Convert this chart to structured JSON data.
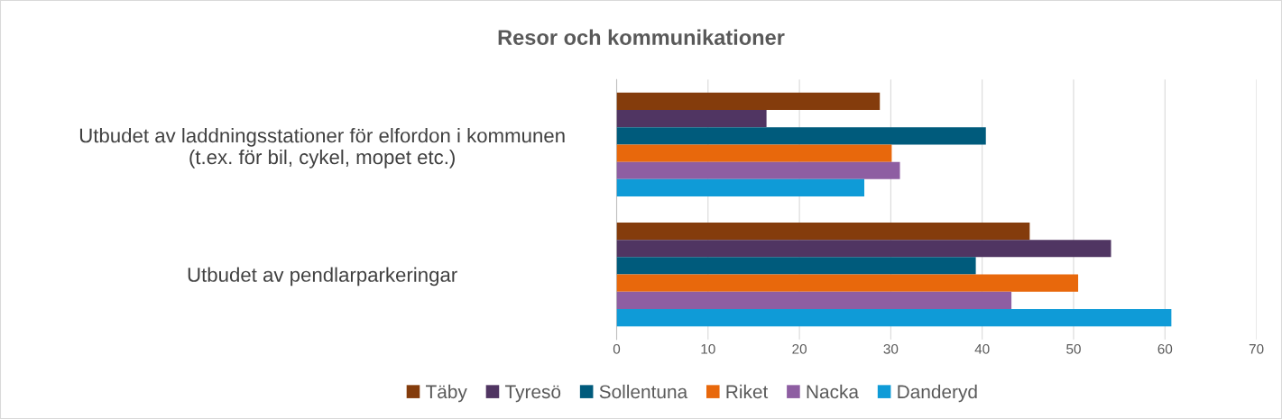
{
  "chart_data": {
    "type": "bar",
    "orientation": "horizontal",
    "title": "Resor och kommunikationer",
    "categories": [
      "Utbudet av laddningsstationer för elfordon i kommunen\n(t.ex. för bil, cykel, mopet etc.)",
      "Utbudet av pendlarparkeringar"
    ],
    "series": [
      {
        "name": "Täby",
        "color": "#843c0c",
        "values": [
          28.8,
          45.2
        ]
      },
      {
        "name": "Tyresö",
        "color": "#503562",
        "values": [
          16.4,
          54.1
        ]
      },
      {
        "name": "Sollentuna",
        "color": "#005b7c",
        "values": [
          40.4,
          39.3
        ]
      },
      {
        "name": "Riket",
        "color": "#e8680c",
        "values": [
          30.1,
          50.5
        ]
      },
      {
        "name": "Nacka",
        "color": "#8e5ea2",
        "values": [
          31.0,
          43.2
        ]
      },
      {
        "name": "Danderyd",
        "color": "#0f9bd7",
        "values": [
          27.1,
          60.7
        ]
      }
    ],
    "xlim": [
      0,
      70
    ],
    "xticks": [
      0,
      10,
      20,
      30,
      40,
      50,
      60,
      70
    ],
    "grid": "x",
    "legend": "bottom"
  }
}
